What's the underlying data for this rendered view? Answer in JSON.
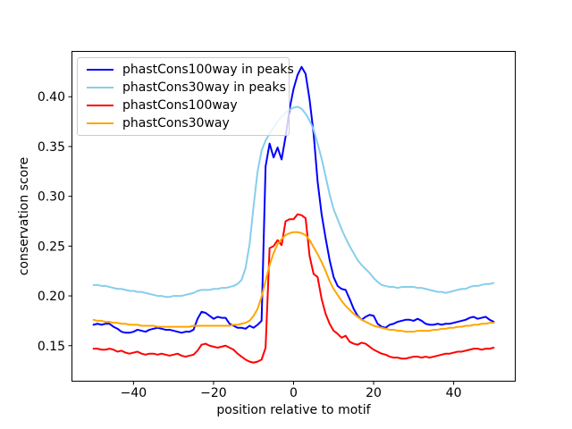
{
  "figure": {
    "background": "#ffffff",
    "frame_color": "#000000"
  },
  "chart_data": {
    "type": "line",
    "title": "",
    "xlabel": "position relative to motif",
    "ylabel": "conservation score",
    "grid": false,
    "legend_position": "upper-left",
    "x_start": -50,
    "x_step": 1,
    "xlim": [
      -55.5,
      55.5
    ],
    "ylim": [
      0.1139,
      0.446
    ],
    "x_ticks": [
      {
        "value": -40,
        "label": "−40"
      },
      {
        "value": -20,
        "label": "−20"
      },
      {
        "value": 0,
        "label": "0"
      },
      {
        "value": 20,
        "label": "20"
      },
      {
        "value": 40,
        "label": "40"
      }
    ],
    "y_ticks": [
      {
        "value": 0.15,
        "label": "0.15"
      },
      {
        "value": 0.2,
        "label": "0.20"
      },
      {
        "value": 0.25,
        "label": "0.25"
      },
      {
        "value": 0.3,
        "label": "0.30"
      },
      {
        "value": 0.35,
        "label": "0.35"
      },
      {
        "value": 0.4,
        "label": "0.40"
      }
    ],
    "series": [
      {
        "name": "phastCons100way in peaks",
        "color": "#0000ff",
        "values": [
          0.171,
          0.172,
          0.171,
          0.172,
          0.172,
          0.169,
          0.167,
          0.164,
          0.163,
          0.163,
          0.164,
          0.166,
          0.165,
          0.164,
          0.166,
          0.167,
          0.168,
          0.167,
          0.166,
          0.166,
          0.165,
          0.164,
          0.163,
          0.164,
          0.164,
          0.166,
          0.177,
          0.184,
          0.183,
          0.18,
          0.177,
          0.179,
          0.178,
          0.178,
          0.172,
          0.17,
          0.168,
          0.168,
          0.167,
          0.17,
          0.168,
          0.171,
          0.175,
          0.33,
          0.353,
          0.339,
          0.349,
          0.337,
          0.36,
          0.388,
          0.408,
          0.422,
          0.43,
          0.423,
          0.397,
          0.363,
          0.315,
          0.282,
          0.258,
          0.236,
          0.219,
          0.21,
          0.207,
          0.206,
          0.197,
          0.187,
          0.18,
          0.176,
          0.179,
          0.181,
          0.18,
          0.172,
          0.169,
          0.168,
          0.171,
          0.172,
          0.174,
          0.175,
          0.176,
          0.176,
          0.175,
          0.177,
          0.175,
          0.172,
          0.171,
          0.171,
          0.172,
          0.171,
          0.172,
          0.172,
          0.173,
          0.174,
          0.175,
          0.176,
          0.178,
          0.179,
          0.177,
          0.178,
          0.179,
          0.176,
          0.174
        ]
      },
      {
        "name": "phastCons30way in peaks",
        "color": "#87ceeb",
        "values": [
          0.211,
          0.211,
          0.21,
          0.21,
          0.209,
          0.208,
          0.207,
          0.207,
          0.206,
          0.205,
          0.205,
          0.204,
          0.204,
          0.203,
          0.202,
          0.201,
          0.2,
          0.2,
          0.199,
          0.199,
          0.2,
          0.2,
          0.2,
          0.201,
          0.202,
          0.203,
          0.205,
          0.206,
          0.206,
          0.206,
          0.207,
          0.207,
          0.208,
          0.208,
          0.209,
          0.21,
          0.212,
          0.216,
          0.228,
          0.252,
          0.29,
          0.325,
          0.346,
          0.356,
          0.363,
          0.369,
          0.375,
          0.38,
          0.384,
          0.387,
          0.389,
          0.39,
          0.388,
          0.383,
          0.376,
          0.367,
          0.353,
          0.338,
          0.32,
          0.302,
          0.287,
          0.277,
          0.267,
          0.258,
          0.25,
          0.243,
          0.236,
          0.231,
          0.227,
          0.223,
          0.218,
          0.214,
          0.211,
          0.21,
          0.209,
          0.209,
          0.208,
          0.209,
          0.209,
          0.209,
          0.209,
          0.208,
          0.208,
          0.207,
          0.206,
          0.205,
          0.204,
          0.204,
          0.203,
          0.204,
          0.205,
          0.206,
          0.207,
          0.207,
          0.209,
          0.21,
          0.21,
          0.211,
          0.212,
          0.212,
          0.213
        ]
      },
      {
        "name": "phastCons100way",
        "color": "#ff0000",
        "values": [
          0.147,
          0.147,
          0.146,
          0.146,
          0.147,
          0.146,
          0.144,
          0.145,
          0.143,
          0.142,
          0.143,
          0.144,
          0.142,
          0.141,
          0.142,
          0.142,
          0.141,
          0.142,
          0.141,
          0.14,
          0.141,
          0.142,
          0.14,
          0.139,
          0.14,
          0.141,
          0.145,
          0.151,
          0.152,
          0.15,
          0.149,
          0.148,
          0.149,
          0.15,
          0.148,
          0.146,
          0.142,
          0.139,
          0.136,
          0.134,
          0.133,
          0.134,
          0.136,
          0.148,
          0.248,
          0.25,
          0.256,
          0.251,
          0.275,
          0.277,
          0.277,
          0.282,
          0.281,
          0.278,
          0.24,
          0.222,
          0.219,
          0.197,
          0.182,
          0.172,
          0.165,
          0.162,
          0.158,
          0.16,
          0.154,
          0.152,
          0.151,
          0.153,
          0.152,
          0.149,
          0.146,
          0.144,
          0.142,
          0.141,
          0.139,
          0.138,
          0.138,
          0.137,
          0.137,
          0.138,
          0.139,
          0.139,
          0.138,
          0.139,
          0.138,
          0.139,
          0.14,
          0.141,
          0.142,
          0.142,
          0.143,
          0.144,
          0.144,
          0.145,
          0.146,
          0.147,
          0.147,
          0.146,
          0.147,
          0.147,
          0.148
        ]
      },
      {
        "name": "phastCons30way",
        "color": "#ffa500",
        "values": [
          0.176,
          0.175,
          0.175,
          0.174,
          0.174,
          0.173,
          0.173,
          0.172,
          0.172,
          0.171,
          0.171,
          0.171,
          0.17,
          0.17,
          0.17,
          0.17,
          0.169,
          0.169,
          0.169,
          0.169,
          0.169,
          0.169,
          0.169,
          0.169,
          0.169,
          0.17,
          0.17,
          0.17,
          0.17,
          0.17,
          0.17,
          0.17,
          0.17,
          0.17,
          0.17,
          0.171,
          0.171,
          0.172,
          0.173,
          0.175,
          0.18,
          0.187,
          0.199,
          0.215,
          0.231,
          0.243,
          0.252,
          0.257,
          0.261,
          0.263,
          0.264,
          0.264,
          0.263,
          0.261,
          0.256,
          0.249,
          0.242,
          0.234,
          0.225,
          0.215,
          0.207,
          0.201,
          0.195,
          0.19,
          0.186,
          0.182,
          0.179,
          0.176,
          0.174,
          0.172,
          0.17,
          0.169,
          0.168,
          0.167,
          0.166,
          0.166,
          0.165,
          0.165,
          0.164,
          0.164,
          0.164,
          0.165,
          0.165,
          0.165,
          0.165,
          0.166,
          0.166,
          0.167,
          0.167,
          0.168,
          0.168,
          0.169,
          0.169,
          0.17,
          0.17,
          0.171,
          0.171,
          0.172,
          0.172,
          0.173,
          0.173
        ]
      }
    ]
  }
}
